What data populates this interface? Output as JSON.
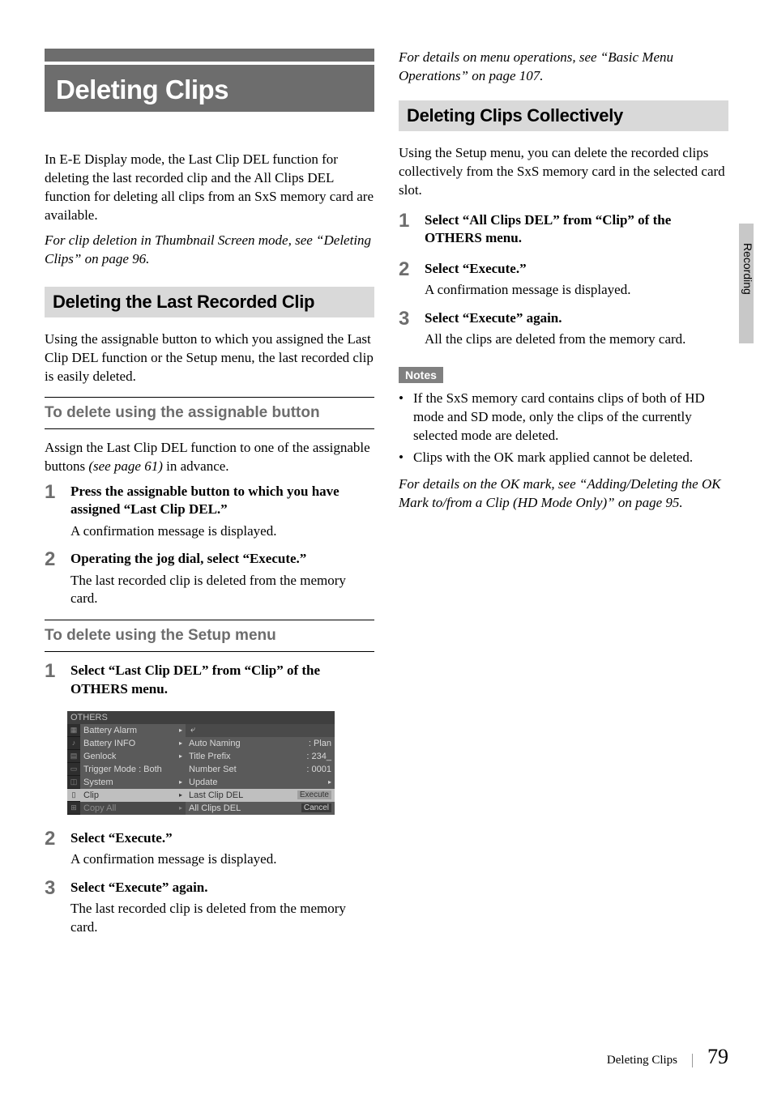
{
  "chapter_title": "Deleting Clips",
  "right_tab_label": "Recording",
  "footer": {
    "title": "Deleting Clips",
    "page": "79"
  },
  "left": {
    "intro": "In E-E Display mode, the Last Clip DEL function for deleting the last recorded clip and the All Clips DEL function for deleting all clips from an SxS memory card are available.",
    "intro_note": "For clip deletion in Thumbnail Screen mode, see “Deleting Clips” on page 96.",
    "section1": {
      "title": "Deleting the Last Recorded Clip"
    },
    "section1_para": "Using the assignable button to which you assigned the Last Clip DEL function or the Setup menu, the last recorded clip is easily deleted.",
    "sub1": {
      "title": "To delete using the assignable button"
    },
    "sub1_para_a": "Assign the Last Clip DEL function to one of the assignable buttons ",
    "sub1_para_b": "(see page 61)",
    "sub1_para_c": " in advance.",
    "step1": {
      "num": "1",
      "head": "Press the assignable button to which you have assigned “Last Clip DEL.”",
      "text": "A confirmation message is displayed."
    },
    "step2": {
      "num": "2",
      "head": "Operating the jog dial, select “Execute.”",
      "text": "The last recorded clip is deleted from the memory card."
    },
    "sub2": {
      "title": "To delete using the Setup menu"
    },
    "step3": {
      "num": "1",
      "head": "Select “Last Clip DEL” from “Clip” of the OTHERS menu."
    },
    "menu": {
      "title": "OTHERS",
      "left_items": [
        {
          "label": "Battery Alarm",
          "arrow": true
        },
        {
          "label": "Battery INFO",
          "arrow": true
        },
        {
          "label": "Genlock",
          "arrow": true
        },
        {
          "label": "Trigger Mode :   Both",
          "arrow": false
        },
        {
          "label": "System",
          "arrow": true
        },
        {
          "label": "Clip",
          "arrow": true,
          "hl": true
        },
        {
          "label": "Copy All",
          "arrow": true,
          "dim": true
        }
      ],
      "right_items": [
        {
          "label": "↩",
          "ret": true
        },
        {
          "label": "Auto Naming",
          "value": ": Plan"
        },
        {
          "label": "Title Prefix",
          "value": ": 234_"
        },
        {
          "label": "Number Set",
          "value": ": 0001"
        },
        {
          "label": "Update",
          "arrow": true
        },
        {
          "label": "Last Clip DEL",
          "pill": "Execute",
          "hl": true
        },
        {
          "label": "All Clips DEL",
          "pill": "Cancel"
        }
      ]
    },
    "step4": {
      "num": "2",
      "head": "Select “Execute.”",
      "text": "A confirmation message is displayed."
    },
    "step5": {
      "num": "3",
      "head": "Select “Execute” again.",
      "text": "The last recorded clip is deleted from the memory card."
    }
  },
  "right": {
    "top_note": "For details on menu operations, see “Basic Menu Operations” on page 107.",
    "section2": {
      "title": "Deleting Clips Collectively"
    },
    "section2_para": "Using the Setup menu, you can delete the recorded clips collectively from the SxS memory card in the selected card slot.",
    "rstep1": {
      "num": "1",
      "head": "Select “All Clips DEL” from “Clip” of the OTHERS menu."
    },
    "rstep2": {
      "num": "2",
      "head": "Select “Execute.”",
      "text": "A confirmation message is displayed."
    },
    "rstep3": {
      "num": "3",
      "head": "Select “Execute” again.",
      "text": "All the clips are deleted from the memory card."
    },
    "notes_label": "Notes",
    "note1": "If the SxS memory card contains clips of both of HD mode and SD mode, only the clips of the currently selected mode are deleted.",
    "note2": "Clips with the OK mark applied cannot be deleted.",
    "bottom_note": "For details on the OK mark, see “Adding/Deleting the OK Mark to/from a Clip (HD Mode Only)” on page 95."
  }
}
